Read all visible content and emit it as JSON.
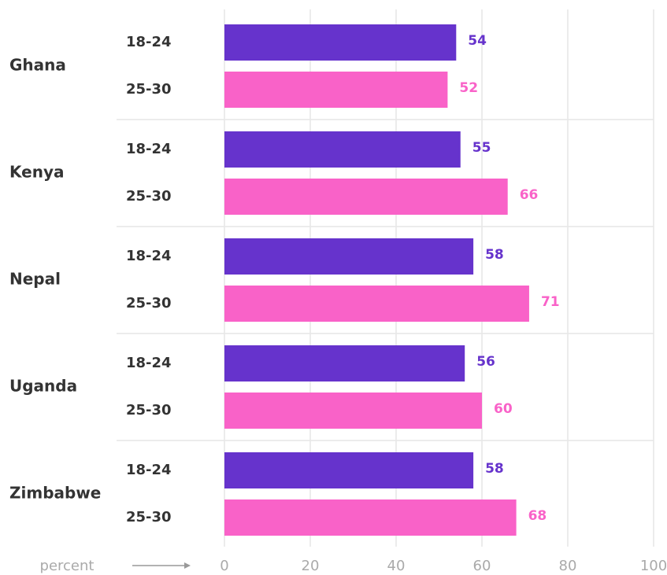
{
  "chart_data": {
    "type": "bar",
    "orientation": "horizontal",
    "categories": [
      "Ghana",
      "Kenya",
      "Nepal",
      "Uganda",
      "Zimbabwe"
    ],
    "series": [
      {
        "name": "18-24",
        "color": "#6633cc",
        "values": [
          54,
          55,
          58,
          56,
          58
        ]
      },
      {
        "name": "25-30",
        "color": "#f962c8",
        "values": [
          52,
          66,
          71,
          60,
          68
        ]
      }
    ],
    "xlabel": "percent",
    "xlim": [
      0,
      100
    ],
    "xticks": [
      0,
      20,
      40,
      60,
      80,
      100
    ],
    "grid": true
  }
}
